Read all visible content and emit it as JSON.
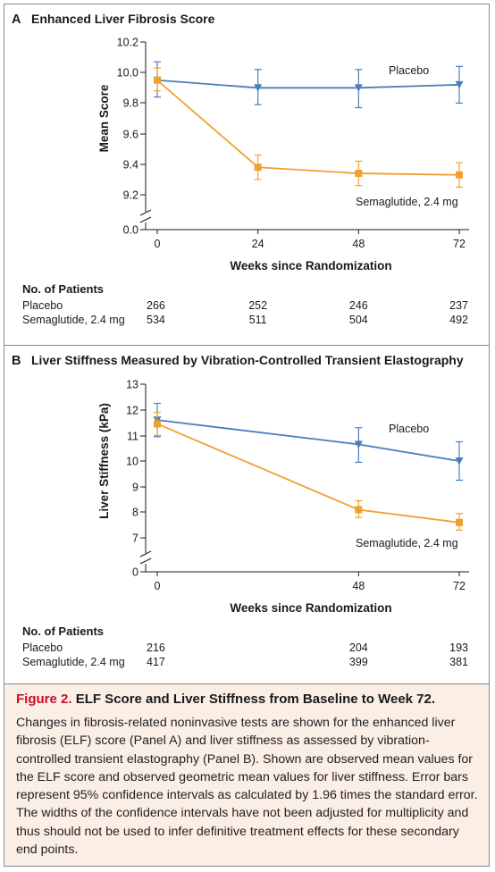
{
  "chart_data": [
    {
      "type": "line",
      "panel_letter": "A",
      "title": "Enhanced Liver Fibrosis Score",
      "xlabel": "Weeks since Randomization",
      "ylabel": "Mean Score",
      "x_ticks": [
        0,
        24,
        48,
        72
      ],
      "y_ticks": [
        "0.0",
        "9.2",
        "9.4",
        "9.6",
        "9.8",
        "10.0",
        "10.2"
      ],
      "ylim": [
        9.1,
        10.2
      ],
      "axis_break": true,
      "series": [
        {
          "name": "Placebo",
          "color": "#4a7ebb",
          "marker": "triangle-down",
          "x": [
            0,
            24,
            48,
            72
          ],
          "y": [
            9.95,
            9.9,
            9.9,
            9.92
          ],
          "ci_low": [
            9.84,
            9.79,
            9.77,
            9.8
          ],
          "ci_high": [
            10.07,
            10.02,
            10.02,
            10.04
          ]
        },
        {
          "name": "Semaglutide, 2.4 mg",
          "color": "#f0a030",
          "marker": "square",
          "x": [
            0,
            24,
            48,
            72
          ],
          "y": [
            9.95,
            9.38,
            9.34,
            9.33
          ],
          "ci_low": [
            9.88,
            9.3,
            9.26,
            9.25
          ],
          "ci_high": [
            10.03,
            9.46,
            9.42,
            9.41
          ]
        }
      ],
      "patients": {
        "heading": "No. of Patients",
        "rows": [
          {
            "label": "Placebo",
            "x": [
              0,
              24,
              48,
              72
            ],
            "values": [
              "266",
              "252",
              "246",
              "237"
            ]
          },
          {
            "label": "Semaglutide, 2.4 mg",
            "x": [
              0,
              24,
              48,
              72
            ],
            "values": [
              "534",
              "511",
              "504",
              "492"
            ]
          }
        ]
      }
    },
    {
      "type": "line",
      "panel_letter": "B",
      "title": "Liver Stiffness Measured by Vibration-Controlled Transient Elastography",
      "xlabel": "Weeks since Randomization",
      "ylabel": "Liver Stiffness (kPa)",
      "x_ticks": [
        0,
        48,
        72
      ],
      "y_ticks": [
        "0",
        "7",
        "8",
        "9",
        "10",
        "11",
        "12",
        "13"
      ],
      "ylim": [
        6.5,
        13
      ],
      "axis_break": true,
      "series": [
        {
          "name": "Placebo",
          "color": "#4a7ebb",
          "marker": "triangle-down",
          "x": [
            0,
            48,
            72
          ],
          "y": [
            11.6,
            10.65,
            10.0
          ],
          "ci_low": [
            10.95,
            9.95,
            9.25
          ],
          "ci_high": [
            12.25,
            11.3,
            10.75
          ]
        },
        {
          "name": "Semaglutide, 2.4 mg",
          "color": "#f0a030",
          "marker": "square",
          "x": [
            0,
            48,
            72
          ],
          "y": [
            11.45,
            8.1,
            7.6
          ],
          "ci_low": [
            11.0,
            7.8,
            7.3
          ],
          "ci_high": [
            11.9,
            8.45,
            7.95
          ]
        }
      ],
      "patients": {
        "heading": "No. of Patients",
        "rows": [
          {
            "label": "Placebo",
            "x": [
              0,
              48,
              72
            ],
            "values": [
              "216",
              "204",
              "193"
            ]
          },
          {
            "label": "Semaglutide, 2.4 mg",
            "x": [
              0,
              48,
              72
            ],
            "values": [
              "417",
              "399",
              "381"
            ]
          }
        ]
      }
    }
  ],
  "caption": {
    "figure_label": "Figure 2.",
    "title": "ELF Score and Liver Stiffness from Baseline to Week 72.",
    "body": "Changes in fibrosis-related noninvasive tests are shown for the enhanced liver fibrosis (ELF) score (Panel A) and liver stiffness as assessed by vibration-controlled transient elastography (Panel B). Shown are observed mean values for the ELF score and observed geometric mean values for liver stiffness. Error bars represent 95% confidence intervals as calculated by 1.96 times the standard error. The widths of the confidence intervals have not been adjusted for multiplicity and thus should not be used to infer definitive treatment effects for these secondary end points."
  }
}
